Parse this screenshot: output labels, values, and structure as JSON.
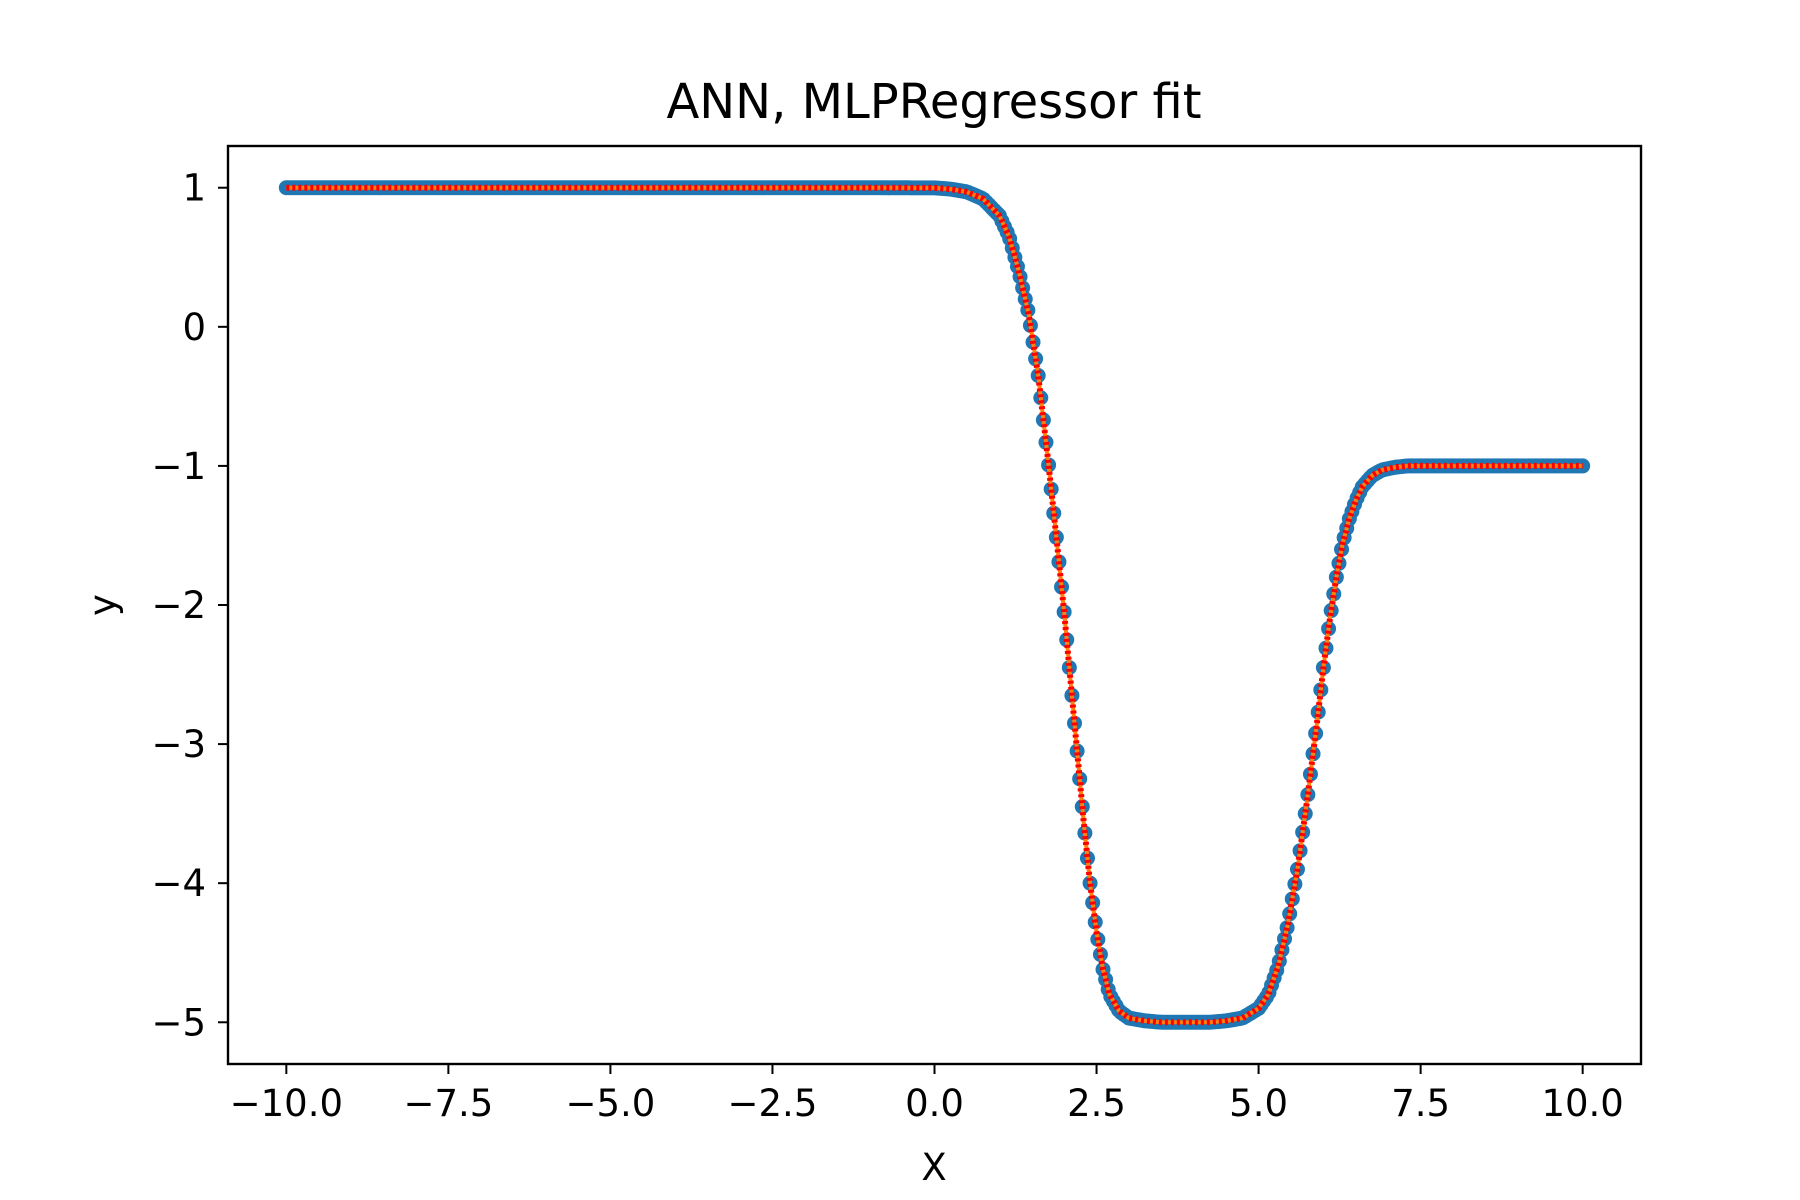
{
  "chart_data": {
    "type": "scatter",
    "title": "ANN, MLPRegressor fit",
    "xlabel": "X",
    "ylabel": "y",
    "xlim": [
      -10.9,
      10.9
    ],
    "ylim": [
      -5.3,
      1.3
    ],
    "xticks": [
      -10.0,
      -7.5,
      -5.0,
      -2.5,
      0.0,
      2.5,
      5.0,
      7.5,
      10.0
    ],
    "xtick_labels": [
      "−10.0",
      "−7.5",
      "−5.0",
      "−2.5",
      "0.0",
      "2.5",
      "5.0",
      "7.5",
      "10.0"
    ],
    "yticks": [
      1,
      0,
      -1,
      -2,
      -3,
      -4,
      -5
    ],
    "ytick_labels": [
      "1",
      "0",
      "−1",
      "−2",
      "−3",
      "−4",
      "−5"
    ],
    "grid": false,
    "x": [
      -10.0,
      -9.0,
      -8.0,
      -7.0,
      -6.0,
      -5.0,
      -4.0,
      -3.0,
      -2.0,
      -1.0,
      0.0,
      0.25,
      0.5,
      0.75,
      1.0,
      1.15,
      1.3,
      1.45,
      1.6,
      1.75,
      1.9,
      2.0,
      2.1,
      2.2,
      2.3,
      2.4,
      2.5,
      2.6,
      2.7,
      2.85,
      3.0,
      3.25,
      3.5,
      3.75,
      4.0,
      4.25,
      4.5,
      4.75,
      5.0,
      5.15,
      5.3,
      5.45,
      5.6,
      5.75,
      5.9,
      6.0,
      6.1,
      6.2,
      6.3,
      6.4,
      6.5,
      6.6,
      6.75,
      6.9,
      7.1,
      7.3,
      7.6,
      8.0,
      8.5,
      9.0,
      9.5,
      10.0
    ],
    "series": [
      {
        "marker": "circle",
        "color": "#1f77b4",
        "values": [
          1.0,
          1.0,
          1.0,
          1.0,
          1.0,
          1.0,
          1.0,
          1.0,
          1.0,
          1.0,
          0.999,
          0.99,
          0.97,
          0.92,
          0.8,
          0.65,
          0.4,
          0.1,
          -0.35,
          -0.95,
          -1.6,
          -2.05,
          -2.55,
          -3.05,
          -3.55,
          -4.0,
          -4.35,
          -4.62,
          -4.8,
          -4.92,
          -4.97,
          -4.99,
          -5.0,
          -5.0,
          -5.0,
          -5.0,
          -4.99,
          -4.97,
          -4.9,
          -4.8,
          -4.6,
          -4.3,
          -3.9,
          -3.4,
          -2.85,
          -2.45,
          -2.1,
          -1.8,
          -1.55,
          -1.38,
          -1.25,
          -1.15,
          -1.07,
          -1.03,
          -1.01,
          -1.0,
          -1.0,
          -1.0,
          -1.0,
          -1.0,
          -1.0,
          -1.0
        ]
      },
      {
        "marker": "line",
        "color": "#ff7f0e",
        "values": [
          1.0,
          1.0,
          1.0,
          1.0,
          1.0,
          1.0,
          1.0,
          1.0,
          1.0,
          1.0,
          0.999,
          0.99,
          0.97,
          0.92,
          0.8,
          0.65,
          0.4,
          0.1,
          -0.35,
          -0.95,
          -1.6,
          -2.05,
          -2.55,
          -3.05,
          -3.55,
          -4.0,
          -4.35,
          -4.62,
          -4.8,
          -4.92,
          -4.97,
          -4.99,
          -5.0,
          -5.0,
          -5.0,
          -5.0,
          -4.99,
          -4.97,
          -4.9,
          -4.8,
          -4.6,
          -4.3,
          -3.9,
          -3.4,
          -2.85,
          -2.45,
          -2.1,
          -1.8,
          -1.55,
          -1.38,
          -1.25,
          -1.15,
          -1.07,
          -1.03,
          -1.01,
          -1.0,
          -1.0,
          -1.0,
          -1.0,
          -1.0,
          -1.0,
          -1.0
        ]
      },
      {
        "marker": "dashed-line",
        "color": "#ff0000",
        "values": [
          1.0,
          1.0,
          1.0,
          1.0,
          1.0,
          1.0,
          1.0,
          1.0,
          1.0,
          1.0,
          0.999,
          0.99,
          0.97,
          0.92,
          0.8,
          0.65,
          0.4,
          0.1,
          -0.35,
          -0.95,
          -1.6,
          -2.05,
          -2.55,
          -3.05,
          -3.55,
          -4.0,
          -4.35,
          -4.62,
          -4.8,
          -4.92,
          -4.97,
          -4.99,
          -5.0,
          -5.0,
          -5.0,
          -5.0,
          -4.99,
          -4.97,
          -4.9,
          -4.8,
          -4.6,
          -4.3,
          -3.9,
          -3.4,
          -2.85,
          -2.45,
          -2.1,
          -1.8,
          -1.55,
          -1.38,
          -1.25,
          -1.15,
          -1.07,
          -1.03,
          -1.01,
          -1.0,
          -1.0,
          -1.0,
          -1.0,
          -1.0,
          -1.0,
          -1.0
        ]
      }
    ]
  }
}
